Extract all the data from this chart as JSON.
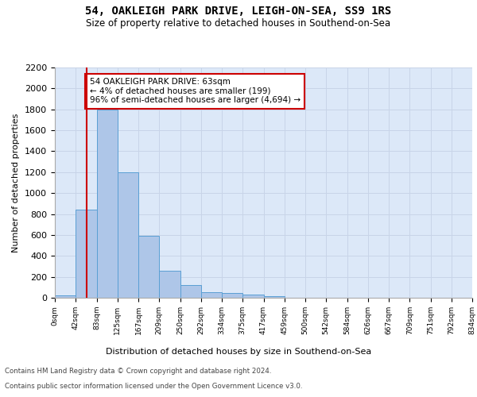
{
  "title": "54, OAKLEIGH PARK DRIVE, LEIGH-ON-SEA, SS9 1RS",
  "subtitle": "Size of property relative to detached houses in Southend-on-Sea",
  "xlabel": "Distribution of detached houses by size in Southend-on-Sea",
  "ylabel": "Number of detached properties",
  "bin_labels": [
    "0sqm",
    "42sqm",
    "83sqm",
    "125sqm",
    "167sqm",
    "209sqm",
    "250sqm",
    "292sqm",
    "334sqm",
    "375sqm",
    "417sqm",
    "459sqm",
    "500sqm",
    "542sqm",
    "584sqm",
    "626sqm",
    "667sqm",
    "709sqm",
    "751sqm",
    "792sqm",
    "834sqm"
  ],
  "bar_values": [
    25,
    845,
    1800,
    1200,
    590,
    260,
    125,
    50,
    48,
    30,
    15,
    0,
    0,
    0,
    0,
    0,
    0,
    0,
    0,
    0
  ],
  "bar_color": "#aec6e8",
  "bar_edge_color": "#5a9fd4",
  "annotation_text": "54 OAKLEIGH PARK DRIVE: 63sqm\n← 4% of detached houses are smaller (199)\n96% of semi-detached houses are larger (4,694) →",
  "annotation_box_color": "#ffffff",
  "annotation_box_edge_color": "#cc0000",
  "vline_color": "#cc0000",
  "ylim": [
    0,
    2200
  ],
  "yticks": [
    0,
    200,
    400,
    600,
    800,
    1000,
    1200,
    1400,
    1600,
    1800,
    2000,
    2200
  ],
  "grid_color": "#c8d4e8",
  "background_color": "#dce8f8",
  "footer_line1": "Contains HM Land Registry data © Crown copyright and database right 2024.",
  "footer_line2": "Contains public sector information licensed under the Open Government Licence v3.0."
}
